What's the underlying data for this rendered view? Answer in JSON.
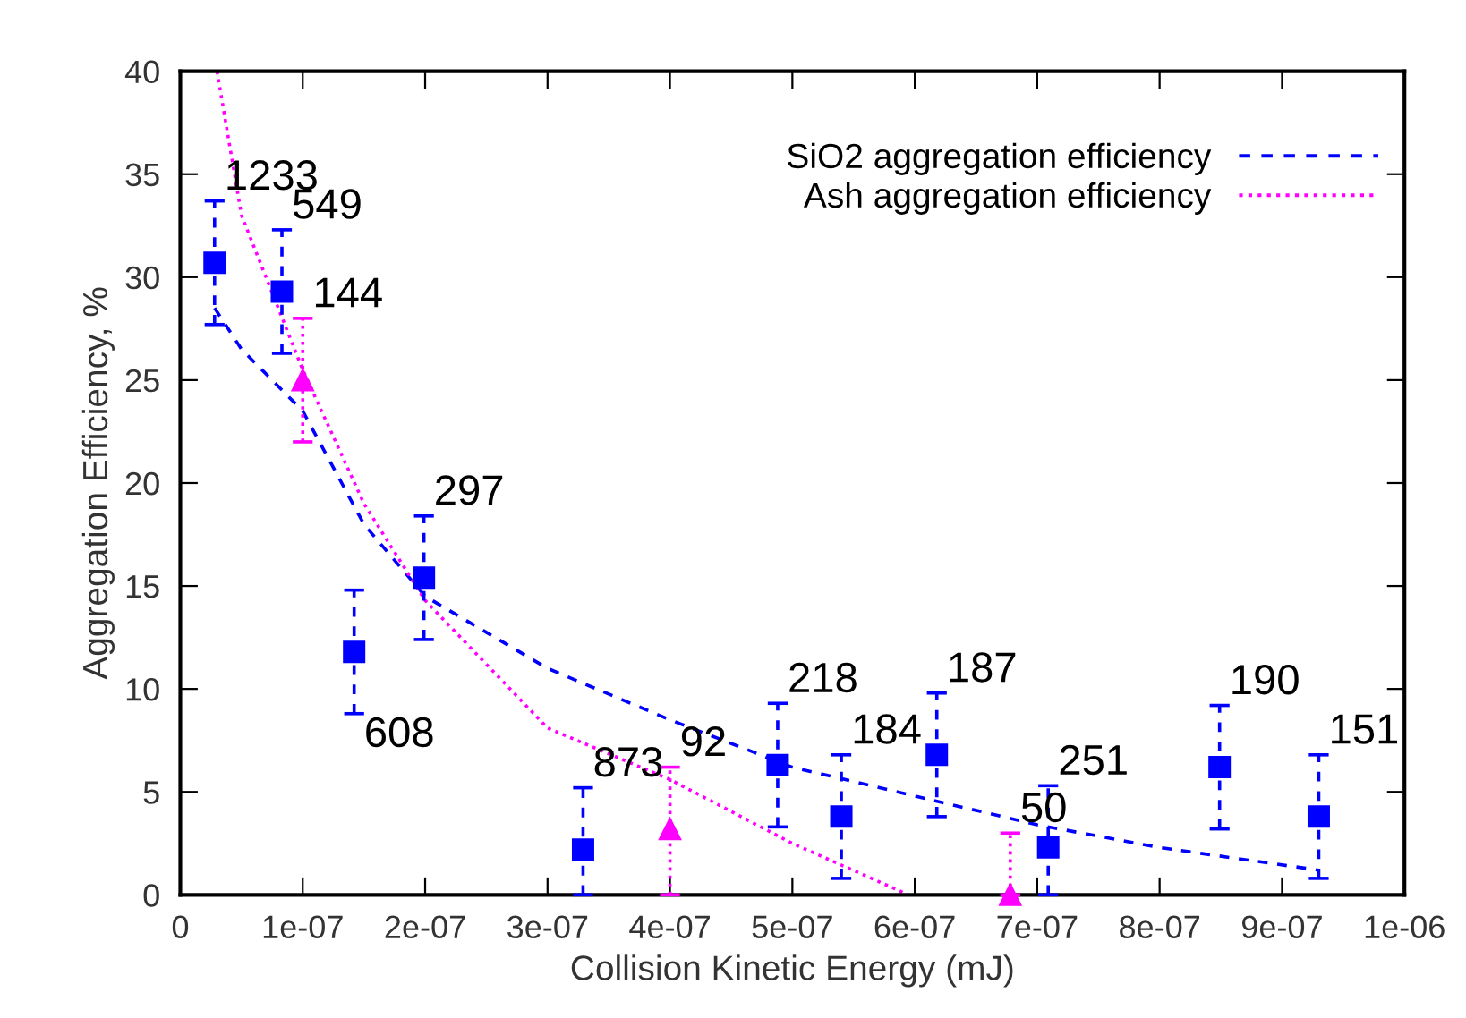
{
  "chart_data": {
    "type": "scatter",
    "xlabel": "Collision Kinetic Energy (mJ)",
    "ylabel": "Aggregation Efficiency, %",
    "xlim": [
      0,
      1e-06
    ],
    "ylim": [
      0,
      40
    ],
    "xticks": [
      0,
      {
        "value": 1e-07,
        "label": "1e-07"
      },
      {
        "value": 2e-07,
        "label": "2e-07"
      },
      {
        "value": 3e-07,
        "label": "3e-07"
      },
      {
        "value": 4e-07,
        "label": "4e-07"
      },
      {
        "value": 5e-07,
        "label": "5e-07"
      },
      {
        "value": 6e-07,
        "label": "6e-07"
      },
      {
        "value": 7e-07,
        "label": "7e-07"
      },
      {
        "value": 8e-07,
        "label": "8e-07"
      },
      {
        "value": 9e-07,
        "label": "9e-07"
      },
      {
        "value": 1e-06,
        "label": "1e-06"
      }
    ],
    "yticks": [
      0,
      5,
      10,
      15,
      20,
      25,
      30,
      35,
      40
    ],
    "grid": false,
    "legend": "top right",
    "series": [
      {
        "name": "SiO2 aggregation efficiency",
        "color": "#0000ff",
        "marker": "square",
        "line_style": "dashed",
        "x": [
          2.8e-08,
          8.3e-08,
          1.42e-07,
          1.99e-07,
          3.29e-07,
          4.88e-07,
          5.4e-07,
          6.18e-07,
          7.09e-07,
          8.49e-07,
          9.3e-07
        ],
        "values": [
          30.7,
          29.3,
          11.8,
          15.4,
          2.2,
          6.3,
          3.8,
          6.8,
          2.3,
          6.2,
          3.8
        ],
        "errors": [
          3,
          3,
          3,
          3,
          [
            0,
            5.2
          ],
          3,
          3,
          3,
          [
            0,
            5.3
          ],
          3,
          3
        ]
      },
      {
        "name": "Ash aggregation efficiency",
        "color": "#ff00ff",
        "marker": "triangle",
        "line_style": "dotted",
        "x": [
          1e-07,
          4e-07,
          6.78e-07
        ],
        "values": [
          25,
          3.2,
          0
        ],
        "errors": [
          3,
          [
            0,
            6.2
          ],
          [
            0,
            3
          ]
        ]
      },
      {
        "type": "line",
        "color": "#0000ff",
        "marker": "none",
        "line_style": "dashed",
        "x": [
          2.8e-08,
          5e-08,
          1e-07,
          1.5e-07,
          2e-07,
          3e-07,
          4e-07,
          5e-07,
          6e-07,
          7e-07,
          8e-07,
          9.3e-07
        ],
        "values": [
          28.5,
          26.5,
          23.5,
          18,
          14.5,
          11,
          8.5,
          6.2,
          4.8,
          3.4,
          2.3,
          1.2
        ]
      },
      {
        "type": "line",
        "color": "#ff00ff",
        "marker": "none",
        "line_style": "dotted",
        "x": [
          3e-08,
          5e-08,
          1e-07,
          1.5e-07,
          2e-07,
          3e-07,
          4e-07,
          5e-07,
          5.95e-07
        ],
        "values": [
          40,
          33,
          25.5,
          19,
          14.3,
          8.1,
          5.6,
          2.5,
          0
        ]
      }
    ],
    "annotations": [
      {
        "text": "1233",
        "x": 2.8e-08,
        "y": 30.7
      },
      {
        "text": "549",
        "x": 8.3e-08,
        "y": 29.3
      },
      {
        "text": "144",
        "x": 1e-07,
        "y": 25
      },
      {
        "text": "297",
        "x": 1.99e-07,
        "y": 15.4
      },
      {
        "text": "608",
        "x": 1.42e-07,
        "y": 11.8
      },
      {
        "text": "873",
        "x": 3.29e-07,
        "y": 2.2
      },
      {
        "text": "92",
        "x": 4e-07,
        "y": 3.2
      },
      {
        "text": "218",
        "x": 4.88e-07,
        "y": 6.3
      },
      {
        "text": "184",
        "x": 5.4e-07,
        "y": 3.8
      },
      {
        "text": "187",
        "x": 6.18e-07,
        "y": 6.8
      },
      {
        "text": "50",
        "x": 6.78e-07,
        "y": 0
      },
      {
        "text": "251",
        "x": 7.09e-07,
        "y": 2.3
      },
      {
        "text": "190",
        "x": 8.49e-07,
        "y": 6.2
      },
      {
        "text": "151",
        "x": 9.3e-07,
        "y": 3.8
      }
    ]
  }
}
